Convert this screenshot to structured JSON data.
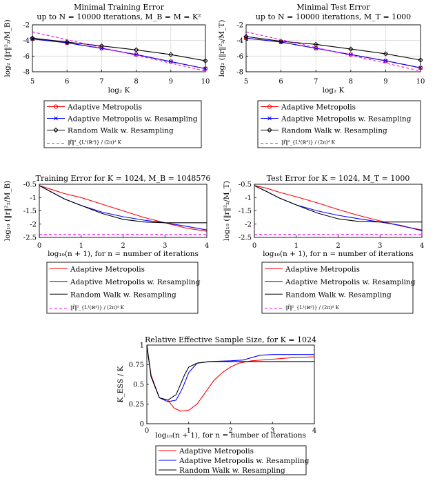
{
  "chart_data": [
    {
      "id": "train_k",
      "type": "line",
      "title": "Minimal Training Error",
      "subtitle": "up to N = 10000 iterations, M_B = M = K²",
      "xlabel": "log₂ K",
      "ylabel": "log₂ (‖r‖²₂/M_B)",
      "xlim": [
        5,
        10
      ],
      "ylim": [
        -8,
        -2
      ],
      "xticks": [
        "5",
        "6",
        "7",
        "8",
        "9",
        "10"
      ],
      "yticks": [
        "-2",
        "-4",
        "-6",
        "-8"
      ],
      "grid": true,
      "x": [
        5,
        6,
        7,
        8,
        9,
        10
      ],
      "series": [
        {
          "name": "Adaptive Metropolis",
          "color": "#ff0000",
          "marker": "circle",
          "values": [
            -3.8,
            -4.3,
            -5.0,
            -5.8,
            -6.7,
            -7.6
          ]
        },
        {
          "name": "Adaptive Metropolis w. Resampling",
          "color": "#0000ff",
          "marker": "x",
          "values": [
            -3.8,
            -4.3,
            -5.0,
            -5.8,
            -6.7,
            -7.6
          ]
        },
        {
          "name": "Random Walk w. Resampling",
          "color": "#000000",
          "marker": "diamond",
          "values": [
            -3.7,
            -4.2,
            -4.7,
            -5.2,
            -5.8,
            -6.6
          ]
        },
        {
          "name": "‖f̂‖²_{L¹(ℝᵈ)} / (2π)ᵈ K",
          "color": "#ff00ff",
          "dashed": true,
          "values": [
            -2.9,
            -3.9,
            -4.9,
            -5.9,
            -6.9,
            -7.9
          ]
        }
      ],
      "legend": "below"
    },
    {
      "id": "test_k",
      "type": "line",
      "title": "Minimal Test Error",
      "subtitle": "up to N = 10000 iterations, M_T = 1000",
      "xlabel": "log₂ K",
      "ylabel": "log₂ (‖r‖²₂/M_T)",
      "xlim": [
        5,
        10
      ],
      "ylim": [
        -8,
        -2
      ],
      "xticks": [
        "5",
        "6",
        "7",
        "8",
        "9",
        "10"
      ],
      "yticks": [
        "-2",
        "-4",
        "-6",
        "-8"
      ],
      "grid": true,
      "x": [
        5,
        6,
        7,
        8,
        9,
        10
      ],
      "series": [
        {
          "name": "Adaptive Metropolis",
          "color": "#ff0000",
          "marker": "circle",
          "values": [
            -3.7,
            -4.2,
            -5.0,
            -5.8,
            -6.6,
            -7.5
          ]
        },
        {
          "name": "Adaptive Metropolis w. Resampling",
          "color": "#0000ff",
          "marker": "x",
          "values": [
            -3.7,
            -4.2,
            -5.0,
            -5.8,
            -6.6,
            -7.5
          ]
        },
        {
          "name": "Random Walk w. Resampling",
          "color": "#000000",
          "marker": "diamond",
          "values": [
            -3.5,
            -4.1,
            -4.5,
            -5.1,
            -5.7,
            -6.5
          ]
        },
        {
          "name": "‖f̂‖²_{L¹(ℝᵈ)} / (2π)ᵈ K",
          "color": "#ff00ff",
          "dashed": true,
          "values": [
            -2.9,
            -3.9,
            -4.9,
            -5.9,
            -6.9,
            -7.9
          ]
        }
      ],
      "legend": "below"
    },
    {
      "id": "train_n",
      "type": "line",
      "title": "Training Error for K = 1024, M_B = 1048576",
      "xlabel": "log₁₀(n + 1), for n = number of iterations",
      "ylabel": "log₁₀ (‖r‖²₂/M_B)",
      "xlim": [
        0,
        4
      ],
      "ylim": [
        -2.5,
        -0.5
      ],
      "xticks": [
        "0",
        "1",
        "2",
        "3",
        "4"
      ],
      "yticks": [
        "-0.5",
        "-1",
        "-1.5",
        "-2",
        "-2.5"
      ],
      "grid": false,
      "series": [
        {
          "name": "Adaptive Metropolis",
          "color": "#ff0000",
          "points": [
            [
              0,
              -0.55
            ],
            [
              0.3,
              -0.7
            ],
            [
              0.6,
              -0.85
            ],
            [
              1,
              -1.0
            ],
            [
              1.5,
              -1.25
            ],
            [
              2,
              -1.5
            ],
            [
              2.5,
              -1.75
            ],
            [
              3,
              -1.95
            ],
            [
              3.5,
              -2.15
            ],
            [
              4,
              -2.27
            ]
          ]
        },
        {
          "name": "Adaptive Metropolis w. Resampling",
          "color": "#0000ff",
          "points": [
            [
              0,
              -0.55
            ],
            [
              0.3,
              -0.8
            ],
            [
              0.6,
              -1.05
            ],
            [
              1,
              -1.3
            ],
            [
              1.5,
              -1.55
            ],
            [
              2,
              -1.72
            ],
            [
              2.5,
              -1.85
            ],
            [
              3,
              -1.95
            ],
            [
              3.5,
              -2.08
            ],
            [
              4,
              -2.22
            ]
          ]
        },
        {
          "name": "Random Walk w. Resampling",
          "color": "#000000",
          "points": [
            [
              0,
              -0.55
            ],
            [
              0.3,
              -0.8
            ],
            [
              0.6,
              -1.05
            ],
            [
              1,
              -1.3
            ],
            [
              1.5,
              -1.6
            ],
            [
              2,
              -1.82
            ],
            [
              2.5,
              -1.92
            ],
            [
              3,
              -1.95
            ],
            [
              3.5,
              -1.95
            ],
            [
              4,
              -1.95
            ]
          ]
        },
        {
          "name": "‖f̂‖²_{L¹(ℝᵈ)} / (2π)ᵈ K",
          "color": "#ff00ff",
          "dashed": true,
          "points": [
            [
              0,
              -2.39
            ],
            [
              4,
              -2.39
            ]
          ]
        }
      ],
      "legend": "below"
    },
    {
      "id": "test_n",
      "type": "line",
      "title": "Test Error for K = 1024, M_T = 1000",
      "xlabel": "log₁₀(n + 1), for n = number of iterations",
      "ylabel": "log₁₀ (‖r‖²₂/M_T)",
      "xlim": [
        0,
        4
      ],
      "ylim": [
        -2.5,
        -0.5
      ],
      "xticks": [
        "0",
        "1",
        "2",
        "3",
        "4"
      ],
      "yticks": [
        "-0.5",
        "-1",
        "-1.5",
        "-2",
        "-2.5"
      ],
      "grid": false,
      "series": [
        {
          "name": "Adaptive Metropolis",
          "color": "#ff0000",
          "points": [
            [
              0,
              -0.55
            ],
            [
              0.3,
              -0.65
            ],
            [
              0.6,
              -0.8
            ],
            [
              1,
              -0.97
            ],
            [
              1.5,
              -1.2
            ],
            [
              2,
              -1.45
            ],
            [
              2.5,
              -1.68
            ],
            [
              3,
              -1.88
            ],
            [
              3.5,
              -2.07
            ],
            [
              4,
              -2.22
            ]
          ]
        },
        {
          "name": "Adaptive Metropolis w. Resampling",
          "color": "#0000ff",
          "points": [
            [
              0,
              -0.55
            ],
            [
              0.3,
              -0.78
            ],
            [
              0.6,
              -1.02
            ],
            [
              1,
              -1.28
            ],
            [
              1.5,
              -1.5
            ],
            [
              2,
              -1.67
            ],
            [
              2.5,
              -1.8
            ],
            [
              3,
              -1.92
            ],
            [
              3.5,
              -2.05
            ],
            [
              4,
              -2.25
            ]
          ]
        },
        {
          "name": "Random Walk w. Resampling",
          "color": "#000000",
          "points": [
            [
              0,
              -0.55
            ],
            [
              0.3,
              -0.78
            ],
            [
              0.6,
              -1.02
            ],
            [
              1,
              -1.28
            ],
            [
              1.5,
              -1.58
            ],
            [
              2,
              -1.8
            ],
            [
              2.5,
              -1.9
            ],
            [
              3,
              -1.92
            ],
            [
              3.5,
              -1.92
            ],
            [
              4,
              -1.92
            ]
          ]
        },
        {
          "name": "‖f̂‖²_{L¹(ℝᵈ)} / (2π)ᵈ K",
          "color": "#ff00ff",
          "dashed": true,
          "points": [
            [
              0,
              -2.39
            ],
            [
              4,
              -2.39
            ]
          ]
        }
      ],
      "legend": "below"
    },
    {
      "id": "ess",
      "type": "line",
      "title": "Relative Effective Sample Size, for K = 1024",
      "xlabel": "log₁₀(n + 1), for n = number of iterations",
      "ylabel": "K_ESS / K",
      "xlim": [
        0,
        4
      ],
      "ylim": [
        0,
        1
      ],
      "xticks": [
        "0",
        "1",
        "2",
        "3",
        "4"
      ],
      "yticks": [
        "0",
        "0.25",
        "0.5",
        "0.75",
        "1"
      ],
      "grid": false,
      "series": [
        {
          "name": "Adaptive Metropolis",
          "color": "#ff0000",
          "points": [
            [
              0,
              1
            ],
            [
              0.1,
              0.62
            ],
            [
              0.3,
              0.33
            ],
            [
              0.5,
              0.3
            ],
            [
              0.65,
              0.2
            ],
            [
              0.8,
              0.16
            ],
            [
              1,
              0.17
            ],
            [
              1.2,
              0.25
            ],
            [
              1.4,
              0.4
            ],
            [
              1.6,
              0.55
            ],
            [
              1.8,
              0.65
            ],
            [
              2,
              0.72
            ],
            [
              2.2,
              0.77
            ],
            [
              2.5,
              0.8
            ],
            [
              3,
              0.82
            ],
            [
              3.5,
              0.84
            ],
            [
              4,
              0.85
            ]
          ]
        },
        {
          "name": "Adaptive Metropolis w. Resampling",
          "color": "#0000ff",
          "points": [
            [
              0,
              1
            ],
            [
              0.1,
              0.6
            ],
            [
              0.3,
              0.33
            ],
            [
              0.5,
              0.28
            ],
            [
              0.7,
              0.3
            ],
            [
              0.85,
              0.45
            ],
            [
              1,
              0.65
            ],
            [
              1.2,
              0.77
            ],
            [
              1.5,
              0.79
            ],
            [
              2,
              0.8
            ],
            [
              2.3,
              0.81
            ],
            [
              2.7,
              0.87
            ],
            [
              3,
              0.88
            ],
            [
              3.5,
              0.88
            ],
            [
              4,
              0.88
            ]
          ]
        },
        {
          "name": "Random Walk w. Resampling",
          "color": "#000000",
          "points": [
            [
              0,
              1
            ],
            [
              0.1,
              0.6
            ],
            [
              0.3,
              0.33
            ],
            [
              0.5,
              0.3
            ],
            [
              0.7,
              0.37
            ],
            [
              0.9,
              0.62
            ],
            [
              1,
              0.72
            ],
            [
              1.2,
              0.77
            ],
            [
              1.5,
              0.79
            ],
            [
              2,
              0.79
            ],
            [
              2.5,
              0.79
            ],
            [
              3,
              0.79
            ],
            [
              3.5,
              0.79
            ],
            [
              4,
              0.79
            ]
          ]
        }
      ],
      "legend": "below"
    }
  ]
}
